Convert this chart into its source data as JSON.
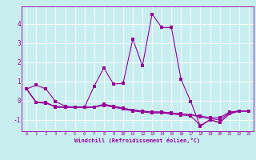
{
  "xlabel": "Windchill (Refroidissement éolien,°C)",
  "bg_color": "#c8eef0",
  "line_color": "#990099",
  "grid_color": "#ffffff",
  "x_hours": [
    0,
    1,
    2,
    3,
    4,
    5,
    6,
    7,
    8,
    9,
    10,
    11,
    12,
    13,
    14,
    15,
    16,
    17,
    18,
    19,
    20,
    21,
    22,
    23
  ],
  "line1": [
    0.6,
    0.8,
    0.6,
    -0.05,
    -0.3,
    -0.35,
    -0.35,
    0.75,
    1.7,
    0.85,
    0.9,
    3.2,
    1.8,
    4.5,
    3.8,
    3.8,
    1.1,
    -0.05,
    -1.35,
    -1.0,
    -1.15,
    -0.7,
    -0.55,
    -0.55
  ],
  "line2": [
    0.6,
    -0.1,
    -0.1,
    -0.35,
    -0.35,
    -0.35,
    -0.35,
    -0.35,
    -0.2,
    -0.3,
    -0.4,
    -0.5,
    -0.55,
    -0.6,
    -0.6,
    -0.65,
    -0.7,
    -0.75,
    -0.8,
    -0.9,
    -0.9,
    -0.6,
    -0.55,
    -0.55
  ],
  "line3": [
    0.6,
    -0.1,
    -0.1,
    -0.35,
    -0.35,
    -0.35,
    -0.35,
    -0.35,
    -0.2,
    -0.3,
    -0.4,
    -0.5,
    -0.55,
    -0.6,
    -0.6,
    -0.65,
    -0.7,
    -0.75,
    -0.85,
    -0.95,
    -1.0,
    -0.65,
    -0.55,
    -0.55
  ],
  "line4": [
    0.6,
    -0.1,
    -0.15,
    -0.3,
    -0.35,
    -0.35,
    -0.35,
    -0.35,
    -0.25,
    -0.35,
    -0.45,
    -0.55,
    -0.6,
    -0.65,
    -0.65,
    -0.7,
    -0.75,
    -0.8,
    -1.3,
    -1.0,
    -1.15,
    -0.7,
    -0.55,
    -0.55
  ],
  "ylim": [
    -1.6,
    4.9
  ],
  "yticks": [
    -1,
    0,
    1,
    2,
    3,
    4
  ],
  "xticks": [
    0,
    1,
    2,
    3,
    4,
    5,
    6,
    7,
    8,
    9,
    10,
    11,
    12,
    13,
    14,
    15,
    16,
    17,
    18,
    19,
    20,
    21,
    22,
    23
  ],
  "marker_size": 2.5,
  "linewidth": 0.8
}
